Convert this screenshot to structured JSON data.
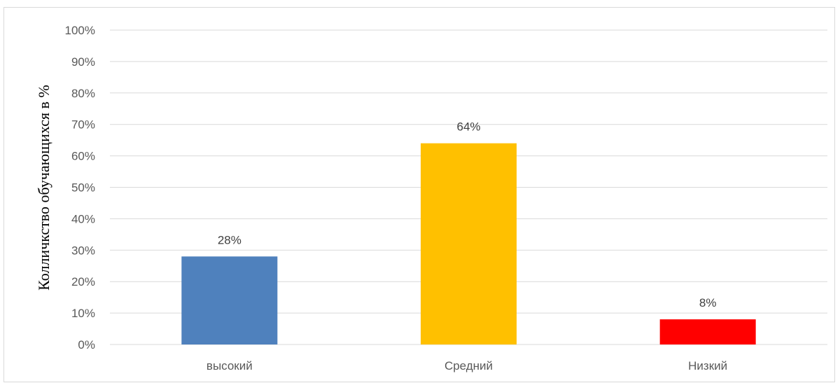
{
  "chart_data": {
    "type": "bar",
    "title": "",
    "xlabel": "",
    "ylabel": "Колличкство обучающихся в %",
    "categories": [
      "высокий",
      "Средний",
      "Низкий"
    ],
    "values": [
      28,
      64,
      8
    ],
    "data_labels": [
      "28%",
      "64%",
      "8%"
    ],
    "bar_colors": [
      "#4f81bd",
      "#ffc000",
      "#ff0000"
    ],
    "ylim": [
      0,
      100
    ],
    "y_ticks": [
      0,
      10,
      20,
      30,
      40,
      50,
      60,
      70,
      80,
      90,
      100
    ],
    "y_tick_labels": [
      "0%",
      "10%",
      "20%",
      "30%",
      "40%",
      "50%",
      "60%",
      "70%",
      "80%",
      "90%",
      "100%"
    ],
    "grid": true,
    "legend": "none"
  }
}
